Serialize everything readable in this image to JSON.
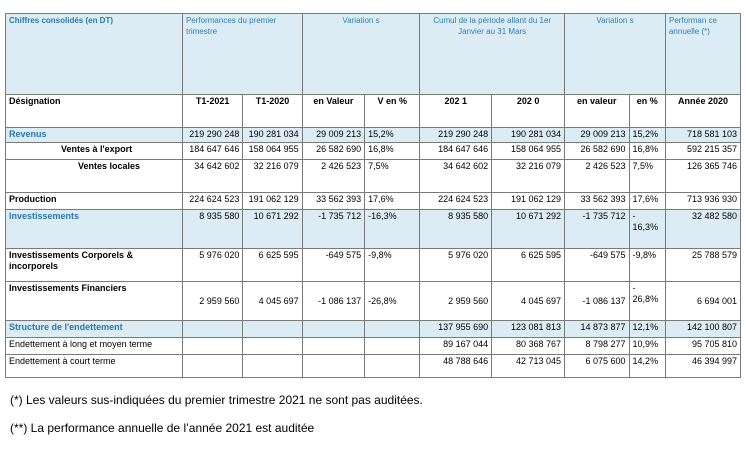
{
  "header": {
    "col1": "Chiffres consolidés (en DT)",
    "perf": "Performances du premier trimestre",
    "var1": "Variation s",
    "cumul": "Cumul de la période allant du 1er Janvier au 31 Mars",
    "var2": "Variation s",
    "annual": "Performan ce annuelle (*)"
  },
  "subheader": {
    "designation": "Désignation",
    "t1_2021": "T1-2021",
    "t1_2020": "T1-2020",
    "en_valeur": "en Valeur",
    "v_en_pct": "V en %",
    "c2021": "202 1",
    "c2020": "202 0",
    "en_valeur2": "en valeur",
    "en_pct": "en %",
    "annee": "Année 2020"
  },
  "rows": [
    {
      "label": "Revenus",
      "t1_2021": "219 290 248",
      "t1_2020": "190 281 034",
      "var_val": "29 009 213",
      "var_pct": "15,2%",
      "c2021": "219 290 248",
      "c2020": "190 281 034",
      "var2_val": "29 009 213",
      "var2_pct": "15,2%",
      "annual": "718 581 103"
    },
    {
      "label": "Ventes à l'export",
      "t1_2021": "184 647 646",
      "t1_2020": "158 064 955",
      "var_val": "26 582 690",
      "var_pct": "16,8%",
      "c2021": "184 647 646",
      "c2020": "158 064 955",
      "var2_val": "26 582 690",
      "var2_pct": "16,8%",
      "annual": "592 215 357"
    },
    {
      "label": "Ventes locales",
      "t1_2021": "34 642 602",
      "t1_2020": "32 216 079",
      "var_val": "2 426 523",
      "var_pct": "7,5%",
      "c2021": "34 642 602",
      "c2020": "32 216 079",
      "var2_val": "2 426 523",
      "var2_pct": "7,5%",
      "annual": "126 365 746"
    },
    {
      "label": "Production",
      "t1_2021": "224 624 523",
      "t1_2020": "191 062 129",
      "var_val": "33 562 393",
      "var_pct": "17,6%",
      "c2021": "224 624 523",
      "c2020": "191 062 129",
      "var2_val": "33 562 393",
      "var2_pct": "17,6%",
      "annual": "713 936 930"
    },
    {
      "label": "Investissements",
      "t1_2021": "8 935 580",
      "t1_2020": "10 671 292",
      "var_val": "-1 735 712",
      "var_pct": "-16,3%",
      "c2021": "8 935 580",
      "c2020": "10 671 292",
      "var2_val": "-1 735 712",
      "var2_pct": "- 16,3%",
      "annual": "32 482 580"
    },
    {
      "label": "Investissements Corporels & incorporels",
      "t1_2021": "5 976 020",
      "t1_2020": "6 625 595",
      "var_val": "-649 575",
      "var_pct": "-9,8%",
      "c2021": "5 976 020",
      "c2020": "6 625 595",
      "var2_val": "-649 575",
      "var2_pct": "-9,8%",
      "annual": "25 788 579"
    },
    {
      "label": "Investissements Financiers",
      "t1_2021": "2 959 560",
      "t1_2020": "4 045 697",
      "var_val": "-1 086 137",
      "var_pct": "-26,8%",
      "c2021": "2 959 560",
      "c2020": "4 045 697",
      "var2_val": "-1 086 137",
      "var2_pct": "- 26,8%",
      "annual": "6 694 001"
    },
    {
      "label": "Structure de l'endettement",
      "c2021": "137 955 690",
      "c2020": "123 081 813",
      "var2_val": "14 873 877",
      "var2_pct": "12,1%",
      "annual": "142 100 807"
    },
    {
      "label": "Endettement à long et moyen terme",
      "c2021": "89 167 044",
      "c2020": "80 368 767",
      "var2_val": "8 798 277",
      "var2_pct": "10,9%",
      "annual": "95 705 810"
    },
    {
      "label": "Endettement à court terme",
      "c2021": "48 788 646",
      "c2020": "42 713 045",
      "var2_val": "6 075 600",
      "var2_pct": "14,2%",
      "annual": "46 394 997"
    }
  ],
  "notes": {
    "n1": "(*) Les valeurs sus-indiquées du premier trimestre 2021 ne sont pas auditées.",
    "n2": "(**) La performance annuelle de l’année 2021 est auditée"
  }
}
